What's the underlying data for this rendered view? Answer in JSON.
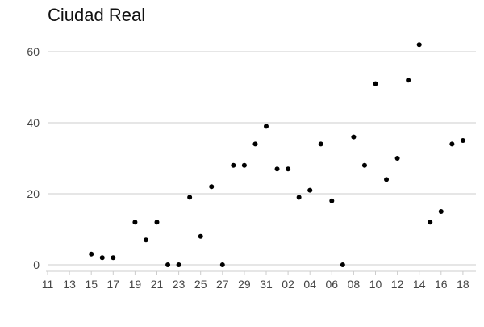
{
  "chart_data": {
    "type": "scatter",
    "title": "Ciudad Real",
    "xlabel": "",
    "ylabel": "",
    "ylim": [
      0,
      64
    ],
    "grid": true,
    "x_tick_labels": [
      "11",
      "13",
      "15",
      "17",
      "19",
      "21",
      "23",
      "25",
      "27",
      "29",
      "31",
      "02",
      "04",
      "06",
      "08",
      "10",
      "12",
      "14",
      "16",
      "18"
    ],
    "y_ticks": [
      0,
      20,
      40,
      60
    ],
    "series": [
      {
        "points": [
          {
            "x": "15",
            "y": 3
          },
          {
            "x": "16",
            "y": 2
          },
          {
            "x": "17",
            "y": 2
          },
          {
            "x": "19",
            "y": 12
          },
          {
            "x": "20",
            "y": 7
          },
          {
            "x": "21",
            "y": 12
          },
          {
            "x": "22",
            "y": 0
          },
          {
            "x": "23",
            "y": 0
          },
          {
            "x": "24",
            "y": 19
          },
          {
            "x": "25",
            "y": 8
          },
          {
            "x": "26",
            "y": 22
          },
          {
            "x": "27",
            "y": 0
          },
          {
            "x": "28",
            "y": 28
          },
          {
            "x": "29",
            "y": 28
          },
          {
            "x": "30",
            "y": 34
          },
          {
            "x": "31",
            "y": 39
          },
          {
            "x": "01",
            "y": 27
          },
          {
            "x": "02",
            "y": 27
          },
          {
            "x": "03",
            "y": 19
          },
          {
            "x": "04",
            "y": 21
          },
          {
            "x": "05",
            "y": 34
          },
          {
            "x": "06",
            "y": 18
          },
          {
            "x": "07",
            "y": 0
          },
          {
            "x": "08",
            "y": 36
          },
          {
            "x": "09",
            "y": 28
          },
          {
            "x": "10",
            "y": 51
          },
          {
            "x": "11",
            "y": 24
          },
          {
            "x": "12",
            "y": 30
          },
          {
            "x": "13",
            "y": 52
          },
          {
            "x": "14",
            "y": 62
          },
          {
            "x": "15",
            "y": 12
          },
          {
            "x": "16",
            "y": 15
          },
          {
            "x": "17",
            "y": 34
          },
          {
            "x": "18",
            "y": 35
          }
        ]
      }
    ],
    "colors": {
      "point": "#000000",
      "grid": "#e6e6e6",
      "tick_label": "#444444",
      "axis": "#cccccc"
    }
  }
}
